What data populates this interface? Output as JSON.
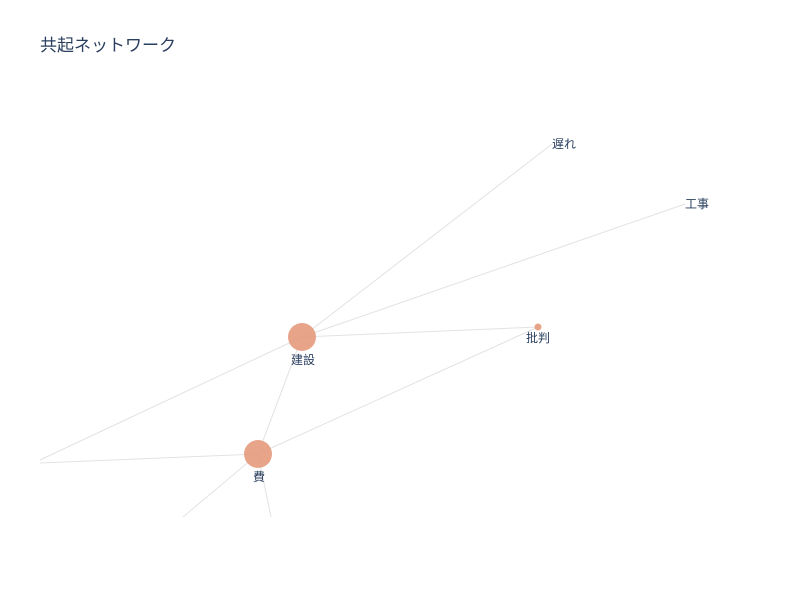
{
  "title": "共起ネットワーク",
  "colors": {
    "node": "#e59a7c",
    "edge": "#e2e2e2",
    "text": "#2a3f5f"
  },
  "chart_data": {
    "type": "network",
    "nodes": [
      {
        "id": "遅れ",
        "label": "遅れ",
        "weight": 0
      },
      {
        "id": "工事",
        "label": "工事",
        "weight": 0
      },
      {
        "id": "建設",
        "label": "建設",
        "weight": 1
      },
      {
        "id": "批判",
        "label": "批判",
        "weight": 0.15
      },
      {
        "id": "費",
        "label": "費",
        "weight": 1
      }
    ],
    "edges": [
      [
        "建設",
        "遅れ"
      ],
      [
        "建設",
        "工事"
      ],
      [
        "建設",
        "批判"
      ],
      [
        "建設",
        "費"
      ],
      [
        "費",
        "批判"
      ]
    ]
  }
}
